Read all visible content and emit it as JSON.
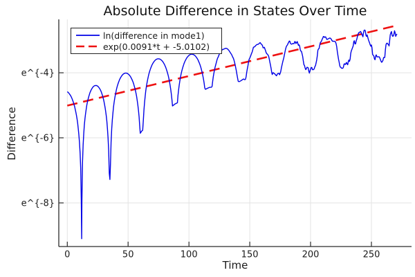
{
  "chart_data": {
    "type": "line",
    "title": "Absolute Difference in States Over Time",
    "xlabel": "Time",
    "ylabel": "Difference",
    "y_scale": "ln",
    "grid": true,
    "frame": "left-bottom",
    "legend_position": "top-left",
    "xlim": [
      -7,
      283
    ],
    "ylim": [
      -9.34,
      -2.36
    ],
    "x_ticks": [
      0,
      50,
      100,
      150,
      200,
      250
    ],
    "y_ticks": [
      {
        "label": "e^{-4}",
        "value": -4
      },
      {
        "label": "e^{-6}",
        "value": -6
      },
      {
        "label": "e^{-8}",
        "value": -8
      }
    ],
    "series": [
      {
        "name": "ln(difference in mode1)",
        "color": "#0000e6",
        "style": "solid",
        "width": 1.4,
        "model": {
          "comment": "log of |difference|: rounded arcs between sharp cusp dips; cusp depth shrinks and noise grows with t",
          "t_end": 271,
          "sample_step": 0.5,
          "cusps_t": [
            -15.5,
            11.8,
            35.0,
            61.2,
            88.5,
            116.2,
            143.7,
            172.0,
            199.4,
            228.5,
            257.0,
            284.5
          ],
          "cusp_depths": [
            -9.1,
            -9.1,
            -7.28,
            -5.79,
            -4.96,
            -4.46,
            -4.23,
            -4.0,
            -3.87,
            -3.72,
            -3.57,
            -3.5
          ],
          "arc_peaks": [
            -4.56,
            -4.39,
            -4.01,
            -3.57,
            -3.43,
            -3.26,
            -3.11,
            -3.04,
            -2.95,
            -2.8,
            -2.7
          ],
          "noise": {
            "start_t": 112,
            "full_t": 272,
            "max_amp": 0.3
          }
        }
      },
      {
        "name": "exp(0.0091*t + -5.0102)",
        "color": "#ee1111",
        "style": "dashed",
        "width": 2.6,
        "slope": 0.0091,
        "intercept": -5.0102,
        "t_range": [
          0,
          270
        ]
      }
    ]
  }
}
